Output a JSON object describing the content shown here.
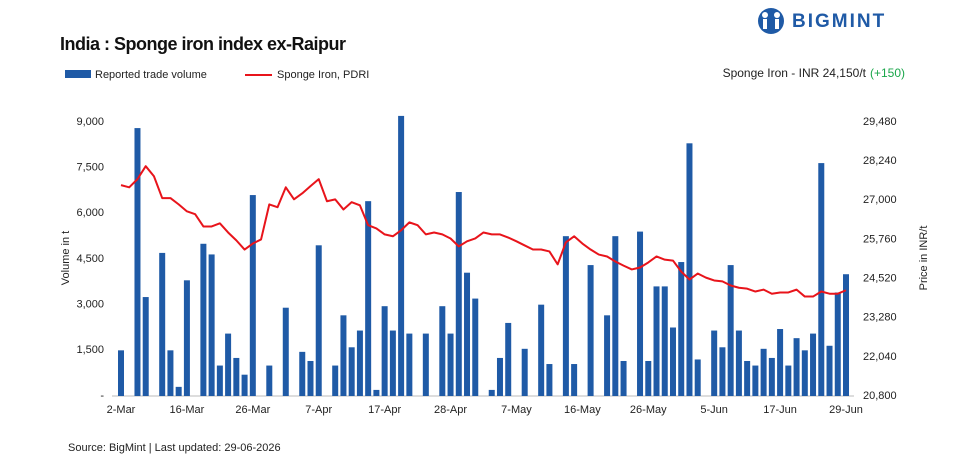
{
  "brand": "BIGMINT",
  "chart_data": {
    "type": "bar-line",
    "title": "India : Sponge iron index ex-Raipur",
    "annotation": {
      "text": "Sponge Iron - INR 24,150/t",
      "change": "(+150)",
      "change_color": "#1aa64a"
    },
    "source": "Source: BigMint | Last updated: 29-06-2026",
    "ylabel": "Volume in t",
    "y2label": "Price in INR/t",
    "categories": [
      "2-Mar",
      null,
      null,
      null,
      null,
      null,
      null,
      null,
      "16-Mar",
      null,
      null,
      null,
      null,
      null,
      null,
      null,
      "26-Mar",
      null,
      null,
      null,
      null,
      null,
      null,
      null,
      "7-Apr",
      null,
      null,
      null,
      null,
      null,
      null,
      null,
      "17-Apr",
      null,
      null,
      null,
      null,
      null,
      null,
      null,
      "28-Apr",
      null,
      null,
      null,
      null,
      null,
      null,
      null,
      "7-May",
      null,
      null,
      null,
      null,
      null,
      null,
      null,
      "16-May",
      null,
      null,
      null,
      null,
      null,
      null,
      null,
      "26-May",
      null,
      null,
      null,
      null,
      null,
      null,
      null,
      "5-Jun",
      null,
      null,
      null,
      null,
      null,
      null,
      null,
      "17-Jun",
      null,
      null,
      null,
      null,
      null,
      null,
      null,
      "29-Jun"
    ],
    "series": [
      {
        "name": "Reported trade volume",
        "color": "#1f5aa6",
        "axis": "y",
        "values": [
          1500,
          null,
          8800,
          3250,
          null,
          4700,
          1500,
          300,
          3800,
          null,
          5000,
          4650,
          1000,
          2050,
          1250,
          700,
          6600,
          null,
          1000,
          null,
          2900,
          null,
          1450,
          1150,
          4950,
          null,
          1000,
          2650,
          1600,
          2150,
          6400,
          200,
          2950,
          2150,
          9200,
          2050,
          null,
          2050,
          null,
          2950,
          2050,
          6700,
          4050,
          3200,
          null,
          200,
          1250,
          2400,
          null,
          1550,
          null,
          3000,
          1050,
          null,
          5250,
          1050,
          null,
          4300,
          null,
          2650,
          5250,
          1150,
          null,
          5400,
          1150,
          3600,
          3600,
          2250,
          4400,
          8300,
          1200,
          null,
          2150,
          1600,
          4300,
          2150,
          1150,
          1000,
          1550,
          1250,
          2200,
          1000,
          1900,
          1500,
          2050,
          7650,
          1650,
          3400,
          4000
        ]
      },
      {
        "name": "Sponge Iron, PDRI",
        "color": "#e8141b",
        "axis": "y2",
        "values": [
          27480,
          27410,
          27670,
          28080,
          27760,
          27070,
          27070,
          26870,
          26650,
          26560,
          26170,
          26170,
          26270,
          25980,
          25730,
          25440,
          25630,
          25760,
          26870,
          26780,
          27410,
          27030,
          27220,
          27450,
          27670,
          26970,
          27030,
          26710,
          26940,
          26840,
          26210,
          26110,
          25920,
          25860,
          26050,
          26300,
          26210,
          25920,
          25980,
          25920,
          25790,
          25540,
          25700,
          25790,
          25980,
          25920,
          25920,
          25820,
          25700,
          25570,
          25440,
          25440,
          25380,
          24970,
          25670,
          25860,
          25630,
          25440,
          25280,
          25220,
          25060,
          24930,
          24810,
          24870,
          25030,
          25220,
          25120,
          25090,
          24740,
          24490,
          24680,
          24550,
          24460,
          24430,
          24300,
          24230,
          24200,
          24110,
          24170,
          24040,
          24080,
          24080,
          24170,
          23950,
          23950,
          24110,
          24040,
          24040,
          24150
        ]
      }
    ],
    "ylim": [
      0,
      9000
    ],
    "yticks": [
      {
        "value": 0,
        "label": "-"
      },
      {
        "value": 1500,
        "label": "1,500"
      },
      {
        "value": 3000,
        "label": "3,000"
      },
      {
        "value": 4500,
        "label": "4,500"
      },
      {
        "value": 6000,
        "label": "6,000"
      },
      {
        "value": 7500,
        "label": "7,500"
      },
      {
        "value": 9000,
        "label": "9,000"
      }
    ],
    "y2lim": [
      20800,
      29480
    ],
    "y2ticks": [
      {
        "value": 20800,
        "label": "20,800"
      },
      {
        "value": 22040,
        "label": "22,040"
      },
      {
        "value": 23280,
        "label": "23,280"
      },
      {
        "value": 24520,
        "label": "24,520"
      },
      {
        "value": 25760,
        "label": "25,760"
      },
      {
        "value": 27000,
        "label": "27,000"
      },
      {
        "value": 28240,
        "label": "28,240"
      },
      {
        "value": 29480,
        "label": "29,480"
      }
    ],
    "grid": false
  }
}
